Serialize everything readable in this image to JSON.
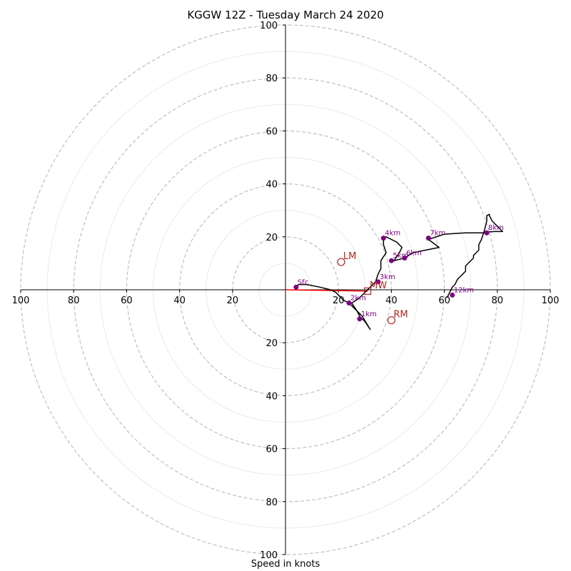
{
  "chart_data": {
    "type": "scatter",
    "title": "KGGW 12Z - Tuesday March 24 2020",
    "xlabel": "Speed in knots",
    "ylabel": "",
    "xlim": [
      -100,
      100
    ],
    "ylim": [
      -100,
      100
    ],
    "grid": "concentric rings",
    "ring_values_major": [
      20,
      40,
      60,
      80,
      100
    ],
    "ring_values_minor": [
      10,
      30,
      50,
      70,
      90
    ],
    "x_tick_labels": [
      "100",
      "80",
      "60",
      "40",
      "20",
      "20",
      "40",
      "60",
      "80",
      "100"
    ],
    "x_tick_values": [
      -100,
      -80,
      -60,
      -40,
      -20,
      20,
      40,
      60,
      80,
      100
    ],
    "y_tick_labels": [
      "100",
      "80",
      "60",
      "40",
      "20",
      "20",
      "40",
      "60",
      "80",
      "100"
    ],
    "y_tick_values": [
      100,
      80,
      60,
      40,
      20,
      -20,
      -40,
      -60,
      -80,
      -100
    ],
    "hodograph_trace": [
      [
        4,
        1
      ],
      [
        5,
        2
      ],
      [
        8,
        2
      ],
      [
        13,
        1
      ],
      [
        17,
        0
      ],
      [
        19,
        -1
      ],
      [
        21,
        -3
      ],
      [
        22,
        -4
      ],
      [
        24,
        -5
      ],
      [
        25,
        -6
      ],
      [
        27,
        -8
      ],
      [
        28,
        -10
      ],
      [
        30,
        -12
      ],
      [
        32,
        -15
      ],
      [
        29,
        -10
      ],
      [
        27,
        -8
      ],
      [
        25,
        -5
      ],
      [
        28,
        -3
      ],
      [
        30,
        -1
      ],
      [
        32,
        1
      ],
      [
        34,
        3
      ],
      [
        35,
        6
      ],
      [
        36,
        8
      ],
      [
        36,
        11
      ],
      [
        38,
        14
      ],
      [
        37,
        17
      ],
      [
        37,
        19
      ],
      [
        38,
        20
      ],
      [
        40,
        19
      ],
      [
        42,
        18
      ],
      [
        44,
        16
      ],
      [
        43,
        14
      ],
      [
        41,
        11
      ],
      [
        45,
        12
      ],
      [
        48,
        14
      ],
      [
        53,
        15
      ],
      [
        58,
        16
      ],
      [
        54,
        19
      ],
      [
        60,
        21
      ],
      [
        68,
        21.5
      ],
      [
        75,
        21.5
      ],
      [
        76,
        21.8
      ],
      [
        79,
        22
      ],
      [
        82,
        22
      ],
      [
        78,
        26
      ],
      [
        77,
        28
      ],
      [
        77,
        28.5
      ],
      [
        76,
        28
      ],
      [
        76,
        26
      ],
      [
        75,
        22
      ],
      [
        74,
        19
      ],
      [
        73,
        17
      ],
      [
        73,
        15
      ],
      [
        72,
        14
      ],
      [
        71,
        13
      ],
      [
        71,
        12
      ],
      [
        69,
        10
      ],
      [
        68,
        9
      ],
      [
        68,
        7
      ],
      [
        67,
        6
      ],
      [
        66,
        5
      ],
      [
        65,
        4
      ],
      [
        64,
        2
      ],
      [
        63,
        1
      ],
      [
        62,
        -1
      ],
      [
        61,
        -3
      ]
    ],
    "height_markers": [
      {
        "label": "Sfc",
        "x": 4,
        "y": 1
      },
      {
        "label": "1km",
        "x": 28,
        "y": -11
      },
      {
        "label": "2km",
        "x": 24,
        "y": -5
      },
      {
        "label": "3km",
        "x": 35,
        "y": 3
      },
      {
        "label": "4km",
        "x": 37,
        "y": 19.5
      },
      {
        "label": "5km",
        "x": 40,
        "y": 11
      },
      {
        "label": "6km",
        "x": 45,
        "y": 12
      },
      {
        "label": "7km",
        "x": 54,
        "y": 19.5
      },
      {
        "label": "8km",
        "x": 76,
        "y": 21.5
      },
      {
        "label": "12km",
        "x": 63,
        "y": -2
      }
    ],
    "storm_motions": [
      {
        "label": "LM",
        "x": 21,
        "y": 10.5
      },
      {
        "label": "RM",
        "x": 40,
        "y": -11.5
      },
      {
        "label": "MW",
        "x": 31,
        "y": -0.5
      }
    ],
    "mean_wind_vector": {
      "x": 31,
      "y": -0.5
    },
    "colors": {
      "trace": "#000000",
      "markers": "#800080",
      "storm_motion": "#b22222",
      "mean_wind_line": "#ff0000",
      "grid": "#bfbfbf"
    }
  }
}
